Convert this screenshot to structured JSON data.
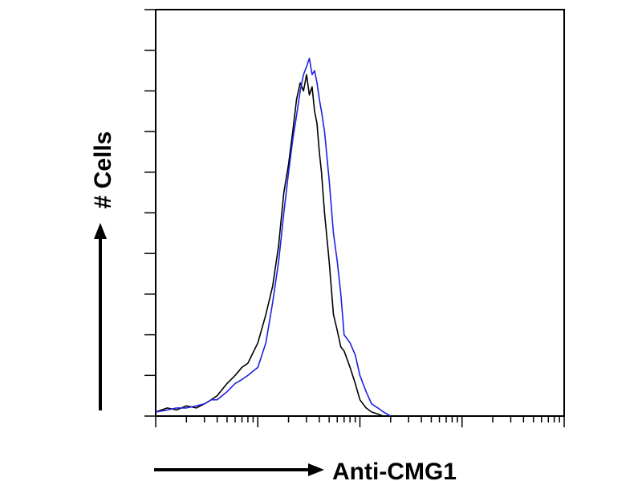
{
  "chart_data": {
    "type": "line",
    "title": "",
    "xlabel": "Anti-CMG1",
    "ylabel": "# Cells",
    "x_scale": "log",
    "xlim": [
      1,
      10000
    ],
    "ylim": [
      0,
      100
    ],
    "grid": false,
    "x_tick_labels": [],
    "y_tick_labels": [],
    "series": [
      {
        "color": "#000000",
        "x": [
          1,
          1.3,
          1.6,
          2,
          2.5,
          3,
          3.5,
          4,
          5,
          6,
          7,
          8,
          10,
          12,
          14,
          16,
          18,
          20,
          22,
          24,
          26,
          28,
          30,
          32,
          34,
          36,
          38,
          40,
          42,
          45,
          50,
          55,
          60,
          65,
          70,
          80,
          90,
          100,
          115,
          130,
          150,
          170,
          200
        ],
        "values": [
          1,
          2,
          1.5,
          2.5,
          2,
          3,
          4,
          5,
          8,
          10,
          12,
          13,
          18,
          25,
          32,
          42,
          55,
          62,
          70,
          78,
          82,
          80,
          84,
          79,
          81,
          75,
          72,
          65,
          60,
          50,
          38,
          25,
          21,
          17,
          16,
          12,
          8,
          4,
          2,
          1,
          0.5,
          0,
          0
        ]
      },
      {
        "color": "#1f1fe0",
        "x": [
          1,
          1.3,
          1.6,
          2,
          2.5,
          3,
          3.5,
          4,
          5,
          6,
          7,
          8,
          10,
          12,
          14,
          16,
          18,
          20,
          22,
          24,
          26,
          28,
          30,
          32,
          34,
          36,
          38,
          40,
          42,
          45,
          50,
          55,
          60,
          65,
          70,
          80,
          90,
          100,
          115,
          130,
          150,
          170,
          200
        ],
        "values": [
          1,
          1.5,
          2,
          2,
          2.5,
          3,
          4,
          4,
          6,
          8,
          9,
          10,
          12,
          18,
          28,
          38,
          50,
          60,
          68,
          74,
          80,
          84,
          86,
          88,
          84,
          85,
          82,
          78,
          75,
          70,
          58,
          45,
          38,
          30,
          20,
          18,
          15,
          10,
          6,
          3,
          2,
          1,
          0
        ]
      }
    ]
  }
}
